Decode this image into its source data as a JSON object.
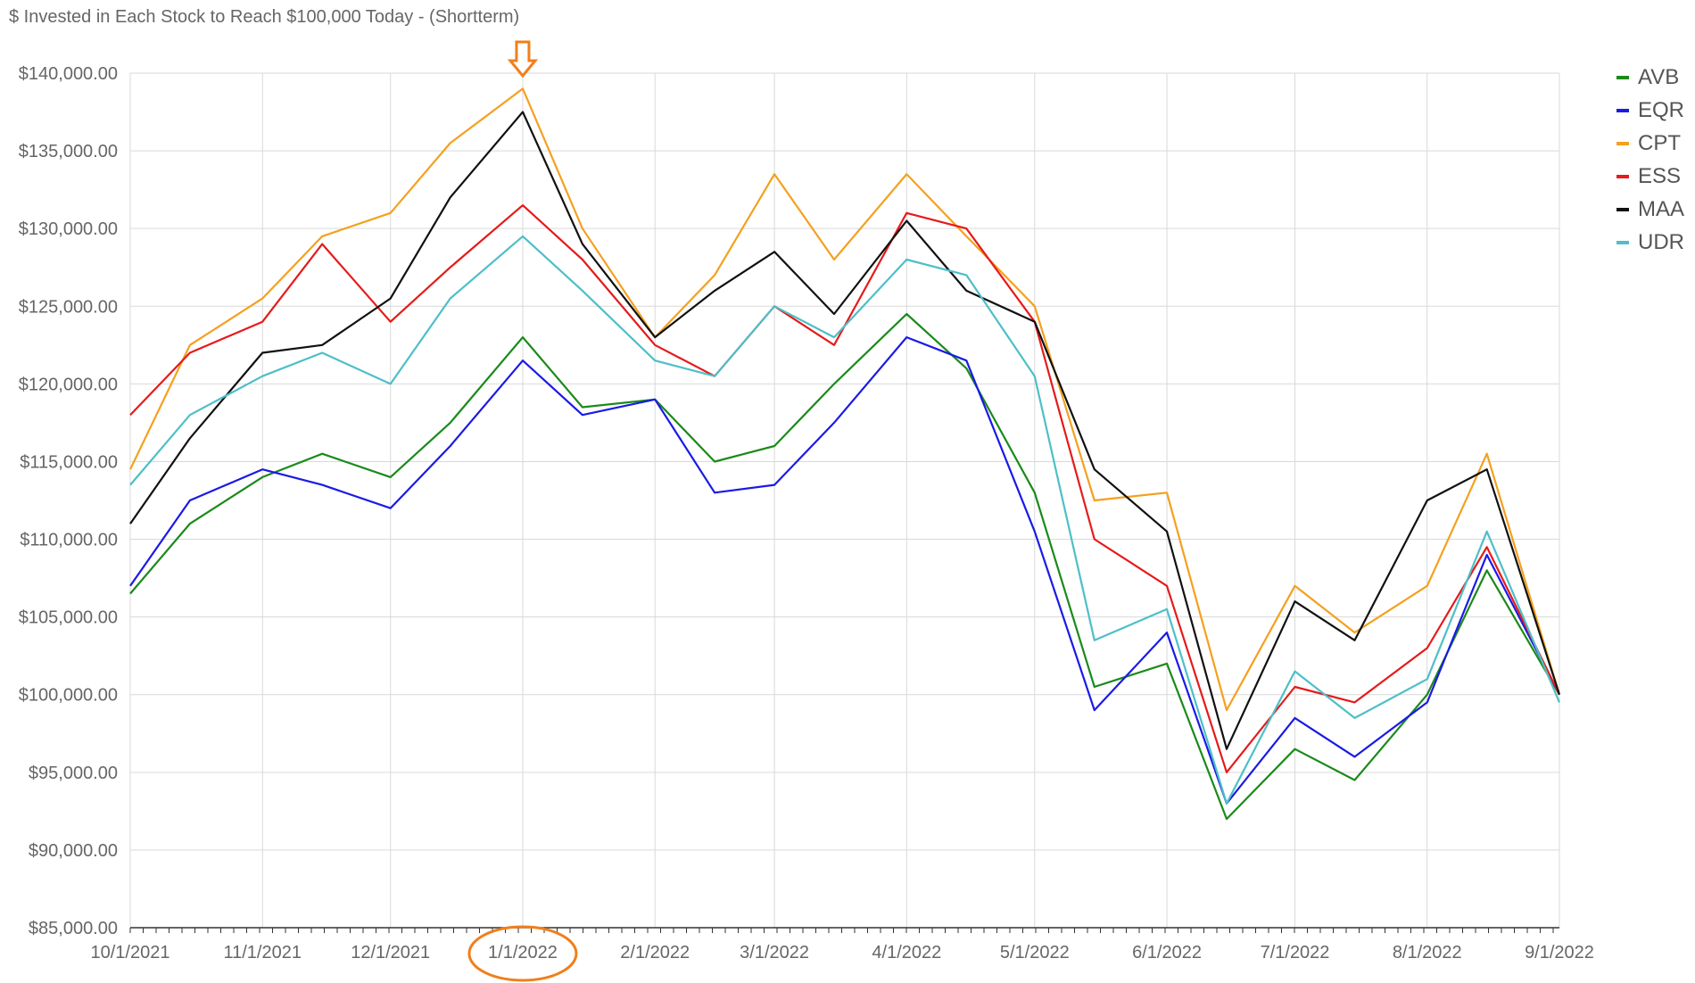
{
  "chart_data": {
    "type": "line",
    "title": "$ Invested in Each Stock to Reach $100,000 Today - (Shortterm)",
    "xlabel": "",
    "ylabel": "",
    "ylim": [
      85000,
      140000
    ],
    "xlim": [
      "2021-10-01",
      "2022-09-01"
    ],
    "grid": true,
    "legend_position": "right",
    "y_ticks": [
      "$85,000.00",
      "$90,000.00",
      "$95,000.00",
      "$100,000.00",
      "$105,000.00",
      "$110,000.00",
      "$115,000.00",
      "$120,000.00",
      "$125,000.00",
      "$130,000.00",
      "$135,000.00",
      "$140,000.00"
    ],
    "y_tick_values": [
      85000,
      90000,
      95000,
      100000,
      105000,
      110000,
      115000,
      120000,
      125000,
      130000,
      135000,
      140000
    ],
    "x_ticks": [
      "10/1/2021",
      "11/1/2021",
      "12/1/2021",
      "1/1/2022",
      "2/1/2022",
      "3/1/2022",
      "4/1/2022",
      "5/1/2022",
      "6/1/2022",
      "7/1/2022",
      "8/1/2022",
      "9/1/2022"
    ],
    "x_tick_dates": [
      "2021-10-01",
      "2021-11-01",
      "2021-12-01",
      "2022-01-01",
      "2022-02-01",
      "2022-03-01",
      "2022-04-01",
      "2022-05-01",
      "2022-06-01",
      "2022-07-01",
      "2022-08-01",
      "2022-09-01"
    ],
    "x": [
      "2021-10-01",
      "2021-10-15",
      "2021-11-01",
      "2021-11-15",
      "2021-12-01",
      "2021-12-15",
      "2022-01-01",
      "2022-01-15",
      "2022-02-01",
      "2022-02-15",
      "2022-03-01",
      "2022-03-15",
      "2022-04-01",
      "2022-04-15",
      "2022-05-01",
      "2022-05-15",
      "2022-06-01",
      "2022-06-15",
      "2022-07-01",
      "2022-07-15",
      "2022-08-01",
      "2022-08-15",
      "2022-09-01"
    ],
    "series": [
      {
        "name": "AVB",
        "color": "#1a8a1a",
        "values": [
          106500,
          111000,
          114000,
          115500,
          114000,
          117500,
          123000,
          118500,
          119000,
          115000,
          116000,
          120000,
          124500,
          121000,
          113000,
          100500,
          102000,
          92000,
          96500,
          94500,
          100000,
          108000,
          100000
        ]
      },
      {
        "name": "EQR",
        "color": "#1a1ae6",
        "values": [
          107000,
          112500,
          114500,
          113500,
          112000,
          116000,
          121500,
          118000,
          119000,
          113000,
          113500,
          117500,
          123000,
          121500,
          110500,
          99000,
          104000,
          93000,
          98500,
          96000,
          99500,
          109000,
          100000
        ]
      },
      {
        "name": "CPT",
        "color": "#f5a01e",
        "values": [
          114500,
          122500,
          125500,
          129500,
          131000,
          135500,
          139000,
          130000,
          123000,
          127000,
          133500,
          128000,
          133500,
          129500,
          125000,
          112500,
          113000,
          99000,
          107000,
          104000,
          107000,
          115500,
          100000
        ]
      },
      {
        "name": "ESS",
        "color": "#e61a1a",
        "values": [
          118000,
          122000,
          124000,
          129000,
          124000,
          127500,
          131500,
          128000,
          122500,
          120500,
          125000,
          122500,
          131000,
          130000,
          124000,
          110000,
          107000,
          95000,
          100500,
          99500,
          103000,
          109500,
          100000
        ]
      },
      {
        "name": "MAA",
        "color": "#111111",
        "values": [
          111000,
          116500,
          122000,
          122500,
          125500,
          132000,
          137500,
          129000,
          123000,
          126000,
          128500,
          124500,
          130500,
          126000,
          124000,
          114500,
          110500,
          96500,
          106000,
          103500,
          112500,
          114500,
          100000
        ]
      },
      {
        "name": "UDR",
        "color": "#4dbfc8",
        "values": [
          113500,
          118000,
          120500,
          122000,
          120000,
          125500,
          129500,
          126000,
          121500,
          120500,
          125000,
          123000,
          128000,
          127000,
          120500,
          103500,
          105500,
          93000,
          101500,
          98500,
          101000,
          110500,
          99500
        ]
      }
    ]
  },
  "annotations": {
    "arrow_color": "#f07f1a",
    "circle_color": "#f07f1a"
  }
}
